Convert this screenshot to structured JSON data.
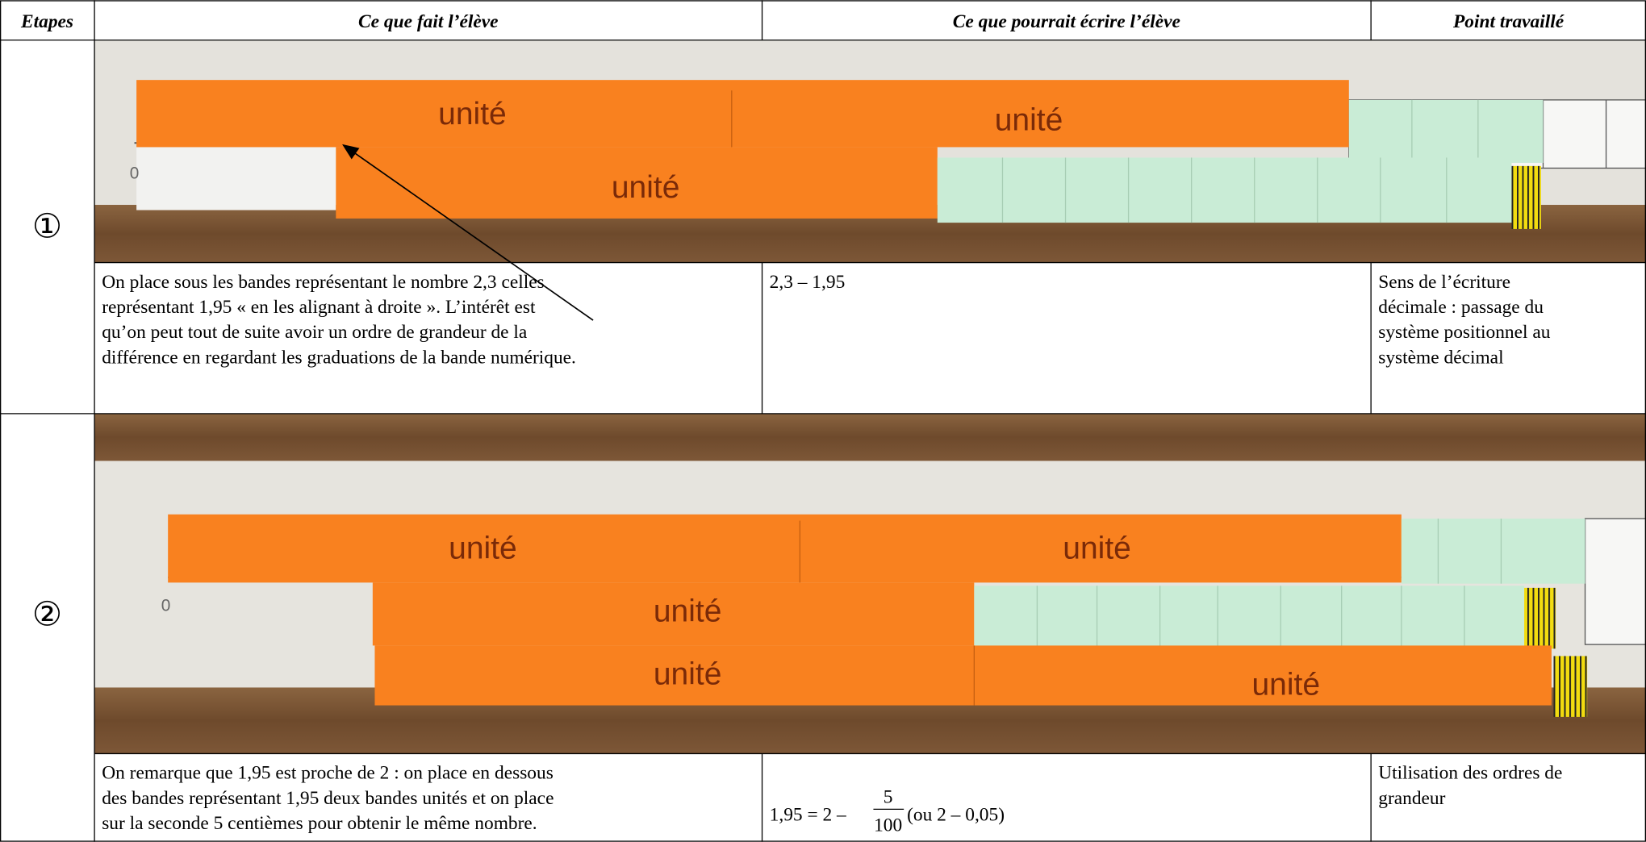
{
  "table": {
    "headers": [
      "Etapes",
      "Ce que fait l’élève",
      "Ce que pourrait écrire l’élève",
      "Point travaillé"
    ],
    "rows": [
      {
        "step": "①",
        "photo": {
          "labels": [
            "unité",
            "unité",
            "unité"
          ],
          "zero": "0"
        },
        "action": [
          "On place sous les bandes représentant le nombre 2,3 celles",
          "représentant 1,95 « en les alignant à droite ». L’intérêt est",
          "qu’on peut tout de suite avoir un ordre de grandeur de la",
          "différence en regardant les graduations de la bande numérique."
        ],
        "writing": {
          "text": "2,3 – 1,95"
        },
        "point": [
          "Sens de l’écriture",
          "décimale : passage du",
          "système positionnel au",
          "système décimal"
        ]
      },
      {
        "step": "②",
        "photo": {
          "labels": [
            "unité",
            "unité",
            "unité",
            "unité",
            "unité"
          ],
          "zero": "0"
        },
        "action": [
          "On remarque que 1,95 est proche de 2 : on place en dessous",
          "des bandes représentant 1,95 deux bandes unités et on place",
          "sur la seconde 5 centièmes pour obtenir le même nombre."
        ],
        "writing": {
          "text": "1,95 = 2 –",
          "numerator": "5",
          "denominator": "100",
          "after": "(ou 2 – 0,05)"
        },
        "point": [
          "Utilisation des ordres de",
          "grandeur"
        ]
      }
    ]
  }
}
